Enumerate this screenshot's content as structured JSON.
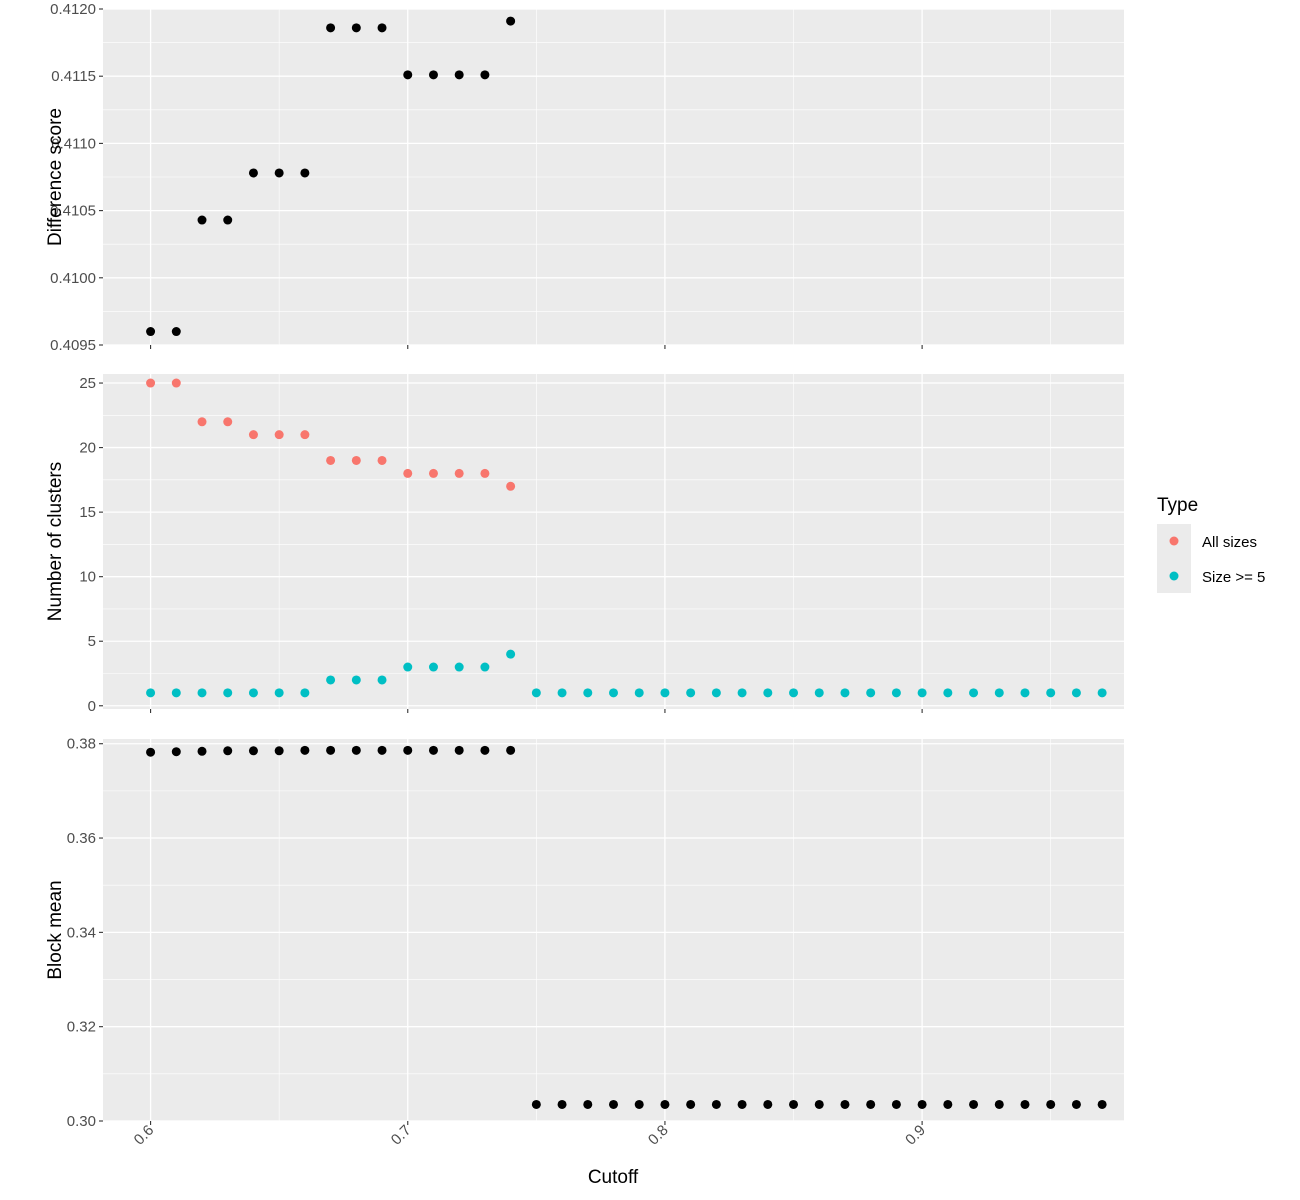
{
  "chart_data": {
    "type": "scatter",
    "xlabel": "Cutoff",
    "x_ticks": [
      "0.6",
      "0.7",
      "0.8",
      "0.9"
    ],
    "x_tick_values": [
      0.6,
      0.7,
      0.8,
      0.9
    ],
    "xlim": [
      0.5815,
      0.9785
    ],
    "x_tick_rotation_deg": -45,
    "grid": true,
    "legend": {
      "title": "Type",
      "position": "right",
      "entries": [
        {
          "label": "All sizes",
          "color": "#F8766D"
        },
        {
          "label": "Size >= 5",
          "color": "#00BFC4"
        }
      ]
    },
    "panels": [
      {
        "ylabel": "Difference score",
        "ylim": [
          0.4095,
          0.412
        ],
        "y_ticks": [
          "0.4095",
          "0.4100",
          "0.4105",
          "0.4110",
          "0.4115",
          "0.4120"
        ],
        "y_tick_values": [
          0.4095,
          0.41,
          0.4105,
          0.411,
          0.4115,
          0.412
        ],
        "series": [
          {
            "color": "#000000",
            "x": [
              0.6,
              0.61,
              0.62,
              0.63,
              0.64,
              0.65,
              0.66,
              0.67,
              0.68,
              0.69,
              0.7,
              0.71,
              0.72,
              0.73,
              0.74
            ],
            "y": [
              0.4096,
              0.4096,
              0.41043,
              0.41043,
              0.41078,
              0.41078,
              0.41078,
              0.41186,
              0.41186,
              0.41186,
              0.41151,
              0.41151,
              0.41151,
              0.41151,
              0.41191
            ]
          }
        ]
      },
      {
        "ylabel": "Number of clusters",
        "ylim": [
          -0.25,
          25.7
        ],
        "y_ticks": [
          "0",
          "5",
          "10",
          "15",
          "20",
          "25"
        ],
        "y_tick_values": [
          0,
          5,
          10,
          15,
          20,
          25
        ],
        "series": [
          {
            "name": "All sizes",
            "color": "#F8766D",
            "x": [
              0.6,
              0.61,
              0.62,
              0.63,
              0.64,
              0.65,
              0.66,
              0.67,
              0.68,
              0.69,
              0.7,
              0.71,
              0.72,
              0.73,
              0.74
            ],
            "y": [
              25,
              25,
              22,
              22,
              21,
              21,
              21,
              19,
              19,
              19,
              18,
              18,
              18,
              18,
              17
            ]
          },
          {
            "name": "Size >= 5",
            "color": "#00BFC4",
            "x": [
              0.6,
              0.61,
              0.62,
              0.63,
              0.64,
              0.65,
              0.66,
              0.67,
              0.68,
              0.69,
              0.7,
              0.71,
              0.72,
              0.73,
              0.74,
              0.75,
              0.76,
              0.77,
              0.78,
              0.79,
              0.8,
              0.81,
              0.82,
              0.83,
              0.84,
              0.85,
              0.86,
              0.87,
              0.88,
              0.89,
              0.9,
              0.91,
              0.92,
              0.93,
              0.94,
              0.95,
              0.96,
              0.97
            ],
            "y": [
              1,
              1,
              1,
              1,
              1,
              1,
              1,
              2,
              2,
              2,
              3,
              3,
              3,
              3,
              4,
              1,
              1,
              1,
              1,
              1,
              1,
              1,
              1,
              1,
              1,
              1,
              1,
              1,
              1,
              1,
              1,
              1,
              1,
              1,
              1,
              1,
              1,
              1
            ]
          }
        ]
      },
      {
        "ylabel": "Block mean",
        "ylim": [
          0.3,
          0.381
        ],
        "y_ticks": [
          "0.30",
          "0.32",
          "0.34",
          "0.36",
          "0.38"
        ],
        "y_tick_values": [
          0.3,
          0.32,
          0.34,
          0.36,
          0.38
        ],
        "series": [
          {
            "color": "#000000",
            "x": [
              0.6,
              0.61,
              0.62,
              0.63,
              0.64,
              0.65,
              0.66,
              0.67,
              0.68,
              0.69,
              0.7,
              0.71,
              0.72,
              0.73,
              0.74,
              0.75,
              0.76,
              0.77,
              0.78,
              0.79,
              0.8,
              0.81,
              0.82,
              0.83,
              0.84,
              0.85,
              0.86,
              0.87,
              0.88,
              0.89,
              0.9,
              0.91,
              0.92,
              0.93,
              0.94,
              0.95,
              0.96,
              0.97
            ],
            "y": [
              0.3782,
              0.3783,
              0.3784,
              0.3785,
              0.3785,
              0.3785,
              0.3786,
              0.3786,
              0.3786,
              0.3786,
              0.3786,
              0.3786,
              0.3786,
              0.3786,
              0.3786,
              0.3035,
              0.3035,
              0.3035,
              0.3035,
              0.3035,
              0.3035,
              0.3035,
              0.3035,
              0.3035,
              0.3035,
              0.3035,
              0.3035,
              0.3035,
              0.3035,
              0.3035,
              0.3035,
              0.3035,
              0.3035,
              0.3035,
              0.3035,
              0.3035,
              0.3035,
              0.3035
            ]
          }
        ]
      }
    ]
  }
}
